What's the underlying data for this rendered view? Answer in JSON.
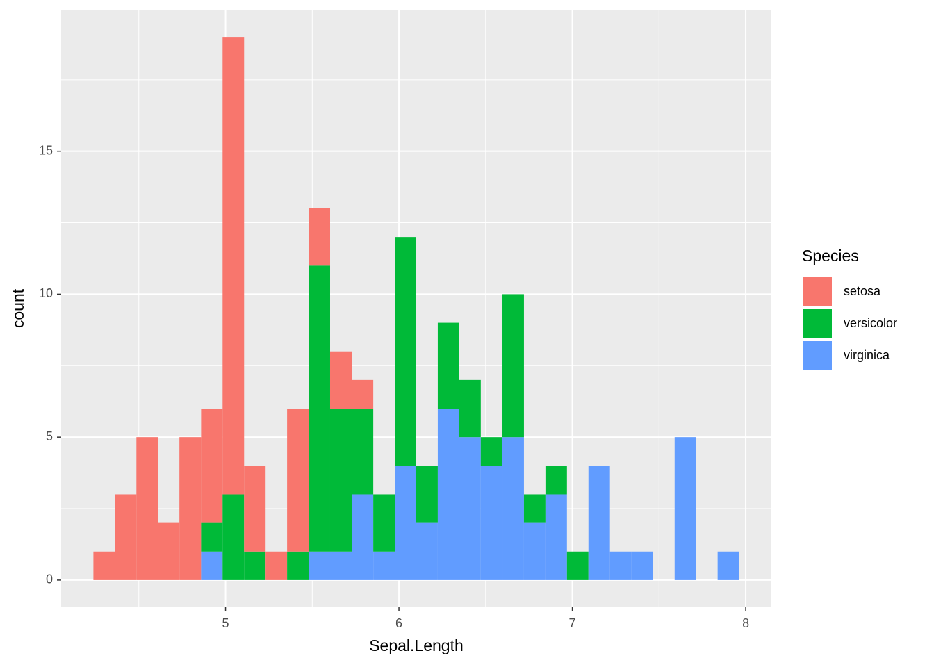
{
  "chart_data": {
    "type": "histogram",
    "x_label": "Sepal.Length",
    "y_label": "count",
    "legend_title": "Species",
    "bins": [
      4.238,
      4.362,
      4.486,
      4.61,
      4.734,
      4.859,
      4.983,
      5.107,
      5.231,
      5.355,
      5.479,
      5.603,
      5.728,
      5.852,
      5.976,
      6.1,
      6.224,
      6.348,
      6.472,
      6.597,
      6.721,
      6.845,
      6.969,
      7.093,
      7.217,
      7.341,
      7.466,
      7.59,
      7.714,
      7.838,
      7.962
    ],
    "series": [
      {
        "name": "setosa",
        "color": "#F8766D",
        "values": [
          1,
          3,
          5,
          2,
          5,
          4,
          16,
          3,
          1,
          5,
          2,
          2,
          1,
          0,
          0,
          0,
          0,
          0,
          0,
          0,
          0,
          0,
          0,
          0,
          0,
          0,
          0,
          0,
          0,
          0
        ]
      },
      {
        "name": "versicolor",
        "color": "#00BA38",
        "values": [
          0,
          0,
          0,
          0,
          0,
          1,
          3,
          1,
          0,
          1,
          10,
          5,
          3,
          2,
          8,
          2,
          3,
          2,
          1,
          5,
          1,
          1,
          1,
          0,
          0,
          0,
          0,
          0,
          0,
          0
        ]
      },
      {
        "name": "virginica",
        "color": "#619CFF",
        "values": [
          0,
          0,
          0,
          0,
          0,
          1,
          0,
          0,
          0,
          0,
          1,
          1,
          3,
          1,
          4,
          2,
          6,
          5,
          4,
          5,
          2,
          3,
          0,
          4,
          1,
          1,
          0,
          5,
          0,
          1
        ]
      }
    ],
    "stacked": true,
    "xlim": [
      4.052,
      8.148
    ],
    "ylim": [
      -0.95,
      19.95
    ],
    "xticks": [
      5,
      6,
      7,
      8
    ],
    "yticks": [
      0,
      5,
      10,
      15
    ],
    "x_minor_grid": [
      4.5,
      5.5,
      6.5,
      7.5
    ],
    "y_minor_grid": [
      2.5,
      7.5,
      12.5,
      17.5
    ],
    "grid": true,
    "legend": "right"
  }
}
